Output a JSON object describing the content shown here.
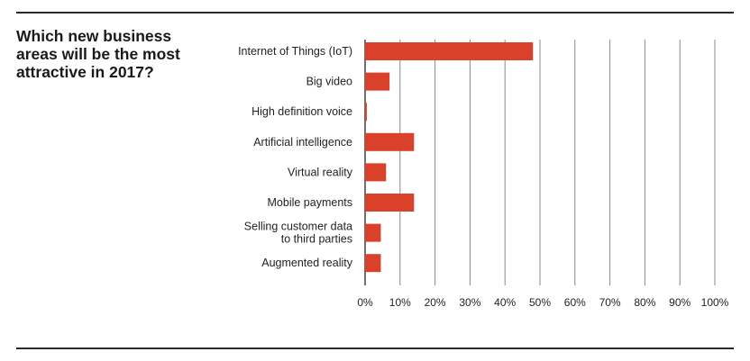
{
  "title_lines": [
    "Which new business",
    "areas will be the most",
    "attractive in 2017?"
  ],
  "chart_data": {
    "type": "bar",
    "orientation": "horizontal",
    "title": "Which new business areas will be the most attractive in 2017?",
    "categories": [
      [
        "Internet of Things (IoT)"
      ],
      [
        "Big video"
      ],
      [
        "High definition voice"
      ],
      [
        "Artificial intelligence"
      ],
      [
        "Virtual reality"
      ],
      [
        "Mobile payments"
      ],
      [
        "Selling customer data",
        "to third parties"
      ],
      [
        "Augmented reality"
      ]
    ],
    "values": [
      48,
      7,
      0.5,
      14,
      6,
      14,
      4.5,
      4.5
    ],
    "xlim": [
      0,
      100
    ],
    "ticks": [
      "0%",
      "10%",
      "20%",
      "30%",
      "40%",
      "50%",
      "60%",
      "70%",
      "80%",
      "90%",
      "100%"
    ],
    "tick_values": [
      0,
      10,
      20,
      30,
      40,
      50,
      60,
      70,
      80,
      90,
      100
    ],
    "bar_color": "#d9412b",
    "gridlines": true
  }
}
